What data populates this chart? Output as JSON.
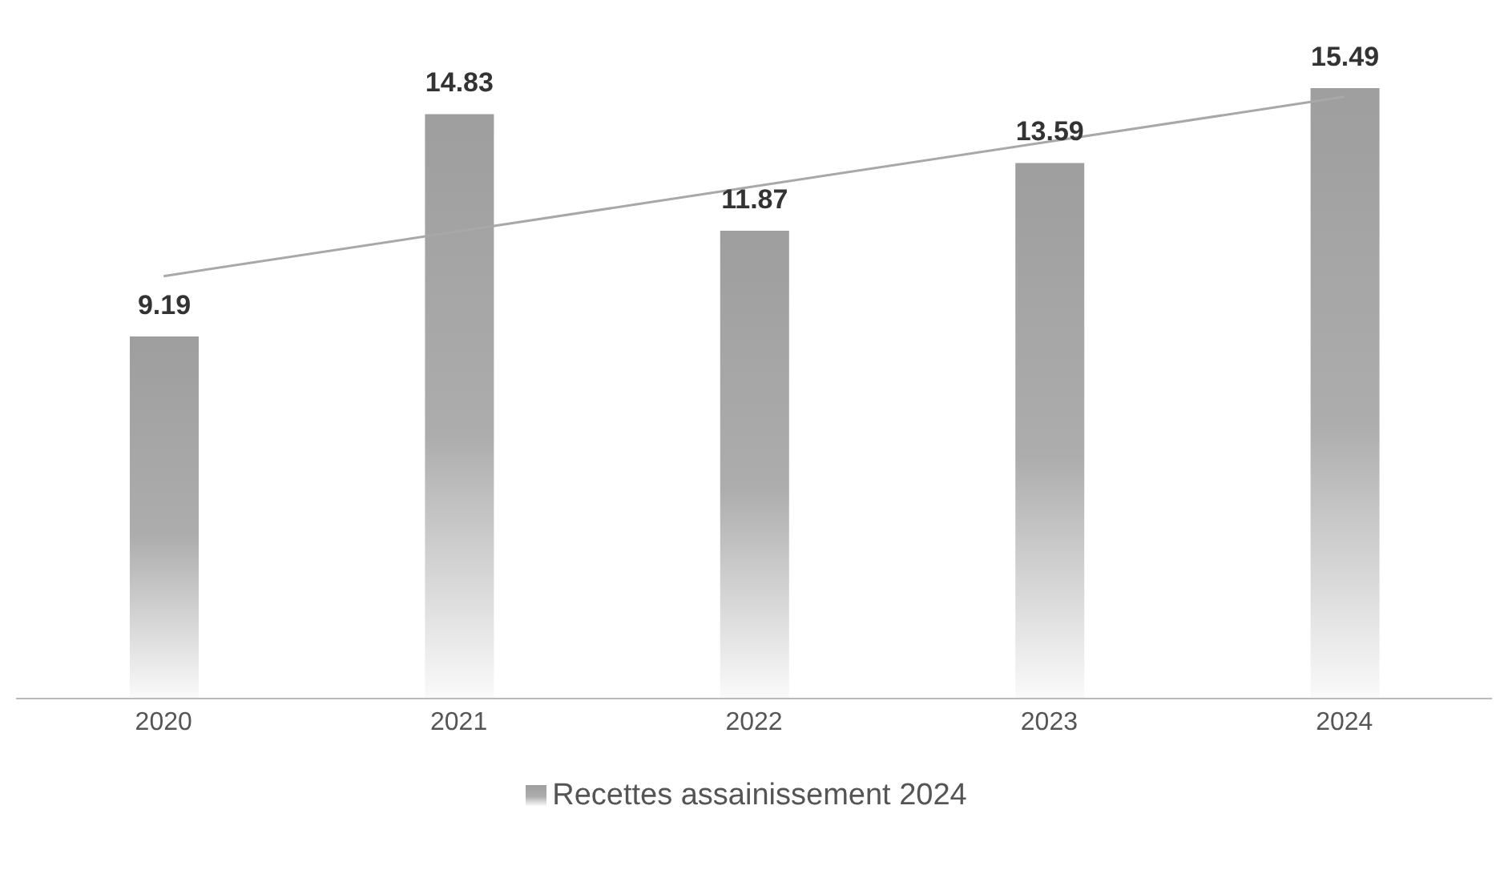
{
  "chart_data": {
    "type": "bar",
    "categories": [
      "2020",
      "2021",
      "2022",
      "2023",
      "2024"
    ],
    "series": [
      {
        "name": "Recettes assainissement 2024",
        "color": "#9e9e9e",
        "values": [
          9.19,
          14.83,
          11.87,
          13.59,
          15.49
        ],
        "value_labels": [
          "9.19",
          "14.83",
          "11.87",
          "13.59",
          "15.49"
        ]
      },
      {
        "type": "line",
        "color": "#a8a8a8",
        "values": [
          10.72,
          null,
          null,
          null,
          15.27
        ]
      }
    ],
    "legend": "bottom",
    "tick_labels": "x"
  }
}
